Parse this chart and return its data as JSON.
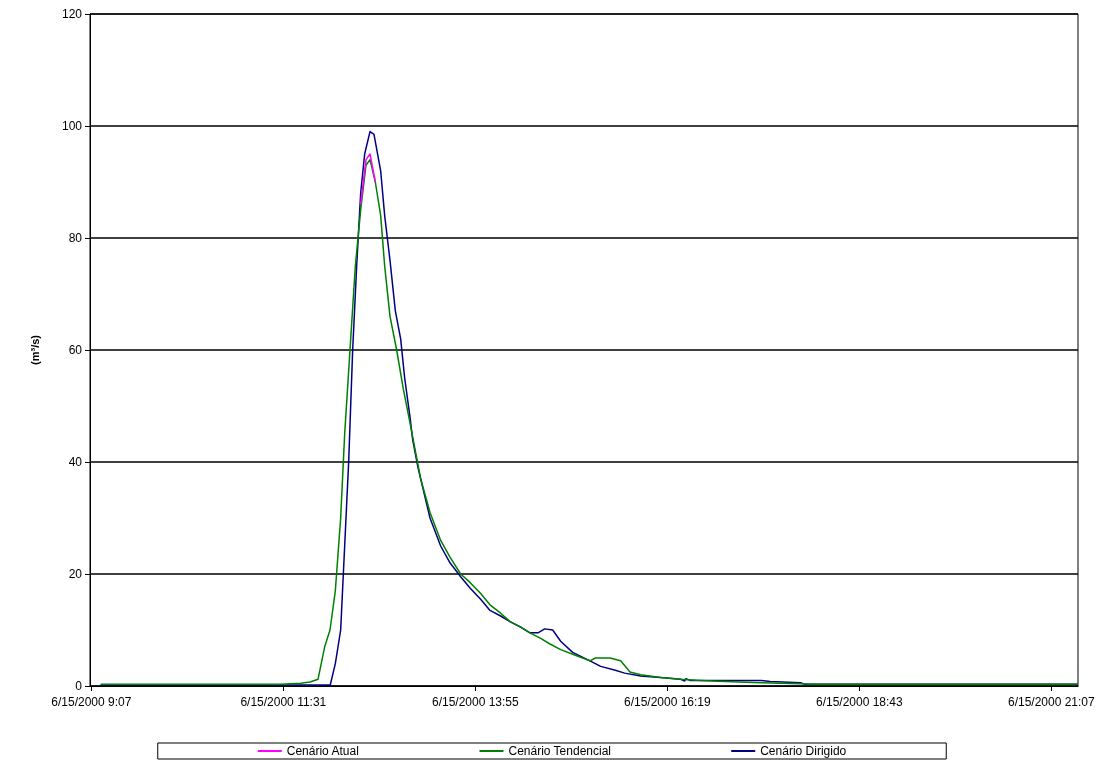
{
  "chart_data": {
    "type": "line",
    "ylabel": "(m³/s)",
    "xlim": [
      "2000-06-15T09:06",
      "2000-06-15T21:27"
    ],
    "xticks": [
      {
        "value": "2000-06-15T09:07",
        "label": "6/15/2000 9:07"
      },
      {
        "value": "2000-06-15T11:31",
        "label": "6/15/2000 11:31"
      },
      {
        "value": "2000-06-15T13:55",
        "label": "6/15/2000 13:55"
      },
      {
        "value": "2000-06-15T16:19",
        "label": "6/15/2000 16:19"
      },
      {
        "value": "2000-06-15T18:43",
        "label": "6/15/2000 18:43"
      },
      {
        "value": "2000-06-15T21:07",
        "label": "6/15/2000 21:07"
      }
    ],
    "ylim": [
      0,
      120
    ],
    "yticks": [
      0,
      20,
      40,
      60,
      80,
      100,
      120
    ],
    "grid": "y",
    "legend": "bottom",
    "marker": "none",
    "line_style": "solid",
    "series": [
      {
        "name": "Cenário Atual",
        "color": "#ff00ff",
        "x": [
          "2000-06-15T12:29",
          "2000-06-15T12:33",
          "2000-06-15T12:36",
          "2000-06-15T12:40"
        ],
        "values": [
          86,
          94,
          95,
          90
        ]
      },
      {
        "name": "Cenário Tendencial",
        "color": "#008000",
        "x": [
          "2000-06-15T09:14",
          "2000-06-15T11:29",
          "2000-06-15T11:44",
          "2000-06-15T11:51",
          "2000-06-15T11:57",
          "2000-06-15T12:02",
          "2000-06-15T12:06",
          "2000-06-15T12:10",
          "2000-06-15T12:14",
          "2000-06-15T12:17",
          "2000-06-15T12:21",
          "2000-06-15T12:25",
          "2000-06-15T12:29",
          "2000-06-15T12:33",
          "2000-06-15T12:36",
          "2000-06-15T12:40",
          "2000-06-15T12:44",
          "2000-06-15T12:47",
          "2000-06-15T12:51",
          "2000-06-15T12:56",
          "2000-06-15T13:01",
          "2000-06-15T13:06",
          "2000-06-15T13:10",
          "2000-06-15T13:14",
          "2000-06-15T13:21",
          "2000-06-15T13:29",
          "2000-06-15T13:36",
          "2000-06-15T13:44",
          "2000-06-15T13:51",
          "2000-06-15T13:59",
          "2000-06-15T14:06",
          "2000-06-15T14:14",
          "2000-06-15T14:21",
          "2000-06-15T14:29",
          "2000-06-15T14:36",
          "2000-06-15T14:44",
          "2000-06-15T14:51",
          "2000-06-15T14:59",
          "2000-06-15T15:10",
          "2000-06-15T15:21",
          "2000-06-15T15:25",
          "2000-06-15T15:36",
          "2000-06-15T15:44",
          "2000-06-15T15:51",
          "2000-06-15T15:59",
          "2000-06-15T16:14",
          "2000-06-15T16:29",
          "2000-06-15T16:44",
          "2000-06-15T17:02",
          "2000-06-15T17:29",
          "2000-06-15T17:59",
          "2000-06-15T18:06",
          "2000-06-15T21:27"
        ],
        "values": [
          0.3,
          0.3,
          0.5,
          0.7,
          1.2,
          7,
          10,
          17,
          30,
          45,
          60,
          75,
          85,
          93,
          94,
          90,
          84,
          75,
          66,
          60,
          53,
          47,
          42,
          37,
          31,
          26,
          23,
          20,
          18.5,
          16.5,
          14.5,
          13,
          11.5,
          10.5,
          9.5,
          8.5,
          7.5,
          6.5,
          5.5,
          4.5,
          5,
          5,
          4.5,
          2.5,
          2,
          1.5,
          1.2,
          1,
          0.8,
          0.6,
          0.4,
          0.3,
          0.3
        ]
      },
      {
        "name": "Cenário Dirigido",
        "color": "#000080",
        "x": [
          "2000-06-15T09:14",
          "2000-06-15T12:05",
          "2000-06-15T12:06",
          "2000-06-15T12:10",
          "2000-06-15T12:14",
          "2000-06-15T12:17",
          "2000-06-15T12:20",
          "2000-06-15T12:23",
          "2000-06-15T12:26",
          "2000-06-15T12:29",
          "2000-06-15T12:32",
          "2000-06-15T12:36",
          "2000-06-15T12:39",
          "2000-06-15T12:44",
          "2000-06-15T12:47",
          "2000-06-15T12:51",
          "2000-06-15T12:55",
          "2000-06-15T12:59",
          "2000-06-15T13:02",
          "2000-06-15T13:06",
          "2000-06-15T13:08",
          "2000-06-15T13:12",
          "2000-06-15T13:17",
          "2000-06-15T13:21",
          "2000-06-15T13:29",
          "2000-06-15T13:36",
          "2000-06-15T13:44",
          "2000-06-15T13:51",
          "2000-06-15T13:59",
          "2000-06-15T14:06",
          "2000-06-15T14:14",
          "2000-06-15T14:21",
          "2000-06-15T14:29",
          "2000-06-15T14:36",
          "2000-06-15T14:42",
          "2000-06-15T14:47",
          "2000-06-15T14:53",
          "2000-06-15T14:59",
          "2000-06-15T15:08",
          "2000-06-15T15:21",
          "2000-06-15T15:29",
          "2000-06-15T15:40",
          "2000-06-15T15:47",
          "2000-06-15T15:59",
          "2000-06-15T16:14",
          "2000-06-15T16:29",
          "2000-06-15T16:32",
          "2000-06-15T16:33",
          "2000-06-15T16:36",
          "2000-06-15T17:02",
          "2000-06-15T17:29",
          "2000-06-15T17:36",
          "2000-06-15T17:59",
          "2000-06-15T18:02",
          "2000-06-15T21:27"
        ],
        "values": [
          0.2,
          0.2,
          0,
          4,
          10,
          25,
          40,
          60,
          75,
          88,
          95,
          99,
          98.5,
          92,
          84,
          76,
          67,
          62,
          55,
          48,
          44,
          39,
          34,
          30,
          25,
          22,
          19.5,
          17.5,
          15.5,
          13.5,
          12.5,
          11.5,
          10.5,
          9.5,
          9.5,
          10.2,
          10,
          8,
          6,
          4.5,
          3.5,
          2.8,
          2.3,
          1.8,
          1.5,
          1.2,
          0.9,
          1.3,
          1,
          1,
          1,
          0.8,
          0.6,
          0.3,
          0.3
        ]
      }
    ]
  }
}
